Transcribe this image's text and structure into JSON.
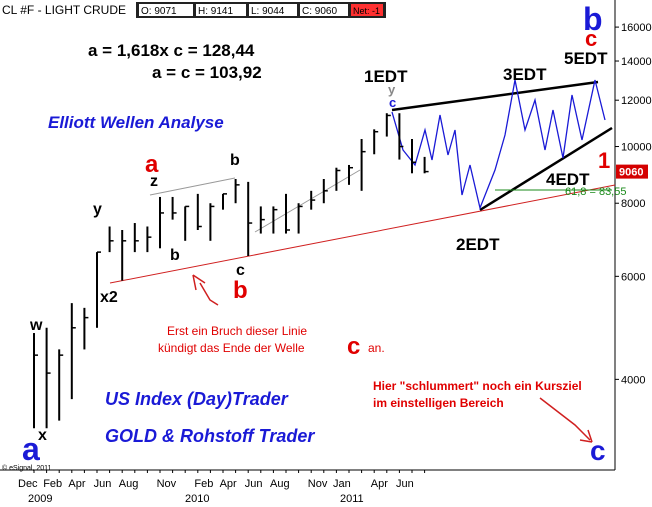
{
  "chart_data": {
    "type": "ohlc",
    "header": {
      "symbol": "CL #F - LIGHT CRUDE",
      "open": "O: 9071",
      "high": "H: 9141",
      "low": "L: 9044",
      "close": "C: 9060",
      "net": "Net: -1"
    },
    "categories": [
      "Dec",
      null,
      "Feb",
      null,
      "Apr",
      null,
      "Jun",
      null,
      "Aug",
      null,
      null,
      "Nov",
      null,
      null,
      "Feb",
      null,
      "Apr",
      null,
      "Jun",
      null,
      "Aug",
      null,
      null,
      "Nov",
      null,
      "Jan",
      null,
      null,
      "Apr",
      null,
      "Jun",
      null
    ],
    "years": [
      "2009",
      "2010",
      "2011"
    ],
    "high": [
      4800,
      4900,
      4500,
      5400,
      5300,
      6600,
      7300,
      7200,
      7400,
      7300,
      8200,
      8200,
      7900,
      8300,
      8000,
      8300,
      8800,
      8700,
      7900,
      7900,
      8300,
      8000,
      8400,
      8800,
      9200,
      9300,
      10300,
      10700,
      11400,
      11400,
      10300,
      9600
    ],
    "low": [
      3300,
      3300,
      3400,
      3700,
      4500,
      4900,
      6600,
      5900,
      6600,
      6600,
      6700,
      7500,
      6900,
      7200,
      6900,
      7800,
      8000,
      6500,
      7100,
      7100,
      7100,
      7100,
      7800,
      8000,
      8400,
      8600,
      8400,
      9700,
      10400,
      9500,
      9000,
      9000
    ],
    "close": [
      4400,
      4100,
      4400,
      4900,
      5100,
      6600,
      6900,
      6900,
      6900,
      7000,
      7700,
      7700,
      7900,
      7300,
      7900,
      8300,
      8600,
      7400,
      7500,
      7800,
      7200,
      7900,
      8100,
      8400,
      9100,
      9200,
      9800,
      10600,
      11300,
      10000,
      9400,
      9060
    ],
    "color": "#000000",
    "last_color": "#d40000",
    "log_scale": true,
    "ylim": [
      2800,
      17800
    ],
    "yticks": [
      4000,
      6000,
      8000,
      10000,
      12000,
      14000,
      16000
    ],
    "grid": false,
    "annotations": [
      {
        "text": "a = 1,618x c = 128,44",
        "color": "#000000"
      },
      {
        "text": "a = c = 103,92",
        "color": "#000000"
      },
      {
        "text": "Elliott Wellen Analyse",
        "color": "#1a1ad6"
      },
      {
        "text": "1EDT",
        "color": "#000000"
      },
      {
        "text": "2EDT",
        "color": "#000000"
      },
      {
        "text": "3EDT",
        "color": "#000000"
      },
      {
        "text": "4EDT",
        "color": "#000000"
      },
      {
        "text": "5EDT",
        "color": "#000000"
      },
      {
        "text": "b",
        "color": "#1a1ad6"
      },
      {
        "text": "c",
        "color": "#e00000"
      },
      {
        "text": "1",
        "color": "#e00000"
      },
      {
        "text": "US Index (Day)Trader",
        "color": "#1a1ad6"
      },
      {
        "text": "GOLD & Rohstoff Trader",
        "color": "#1a1ad6"
      },
      {
        "text": "Erst ein Bruch dieser Linie",
        "color": "#e00000"
      },
      {
        "text": "kündigt das Ende der Welle",
        "color": "#e00000"
      },
      {
        "text": "c",
        "color": "#e00000"
      },
      {
        "text": "an.",
        "color": "#e00000"
      },
      {
        "text": "Hier \"schlummert\" noch ein Kursziel",
        "color": "#e00000"
      },
      {
        "text": "im einstelligen Bereich",
        "color": "#e00000"
      },
      {
        "text": "61,8 = 83,55",
        "color": "#1a8a1a"
      },
      {
        "text": "a",
        "color": "#1a1ad6"
      },
      {
        "text": "x",
        "color": "#000000"
      },
      {
        "text": "w",
        "color": "#000000"
      },
      {
        "text": "y",
        "color": "#000000"
      },
      {
        "text": "x2",
        "color": "#000000"
      },
      {
        "text": "z",
        "color": "#000000"
      },
      {
        "text": "a",
        "color": "#e00000"
      },
      {
        "text": "b",
        "color": "#000000"
      },
      {
        "text": "b",
        "color": "#000000"
      },
      {
        "text": "c",
        "color": "#000000"
      },
      {
        "text": "b",
        "color": "#e00000"
      },
      {
        "text": "© eSignal, 2011",
        "color": "#000000"
      },
      {
        "text": "y",
        "color": "#888888"
      },
      {
        "text": "c",
        "color": "#1a1ad6"
      }
    ]
  }
}
